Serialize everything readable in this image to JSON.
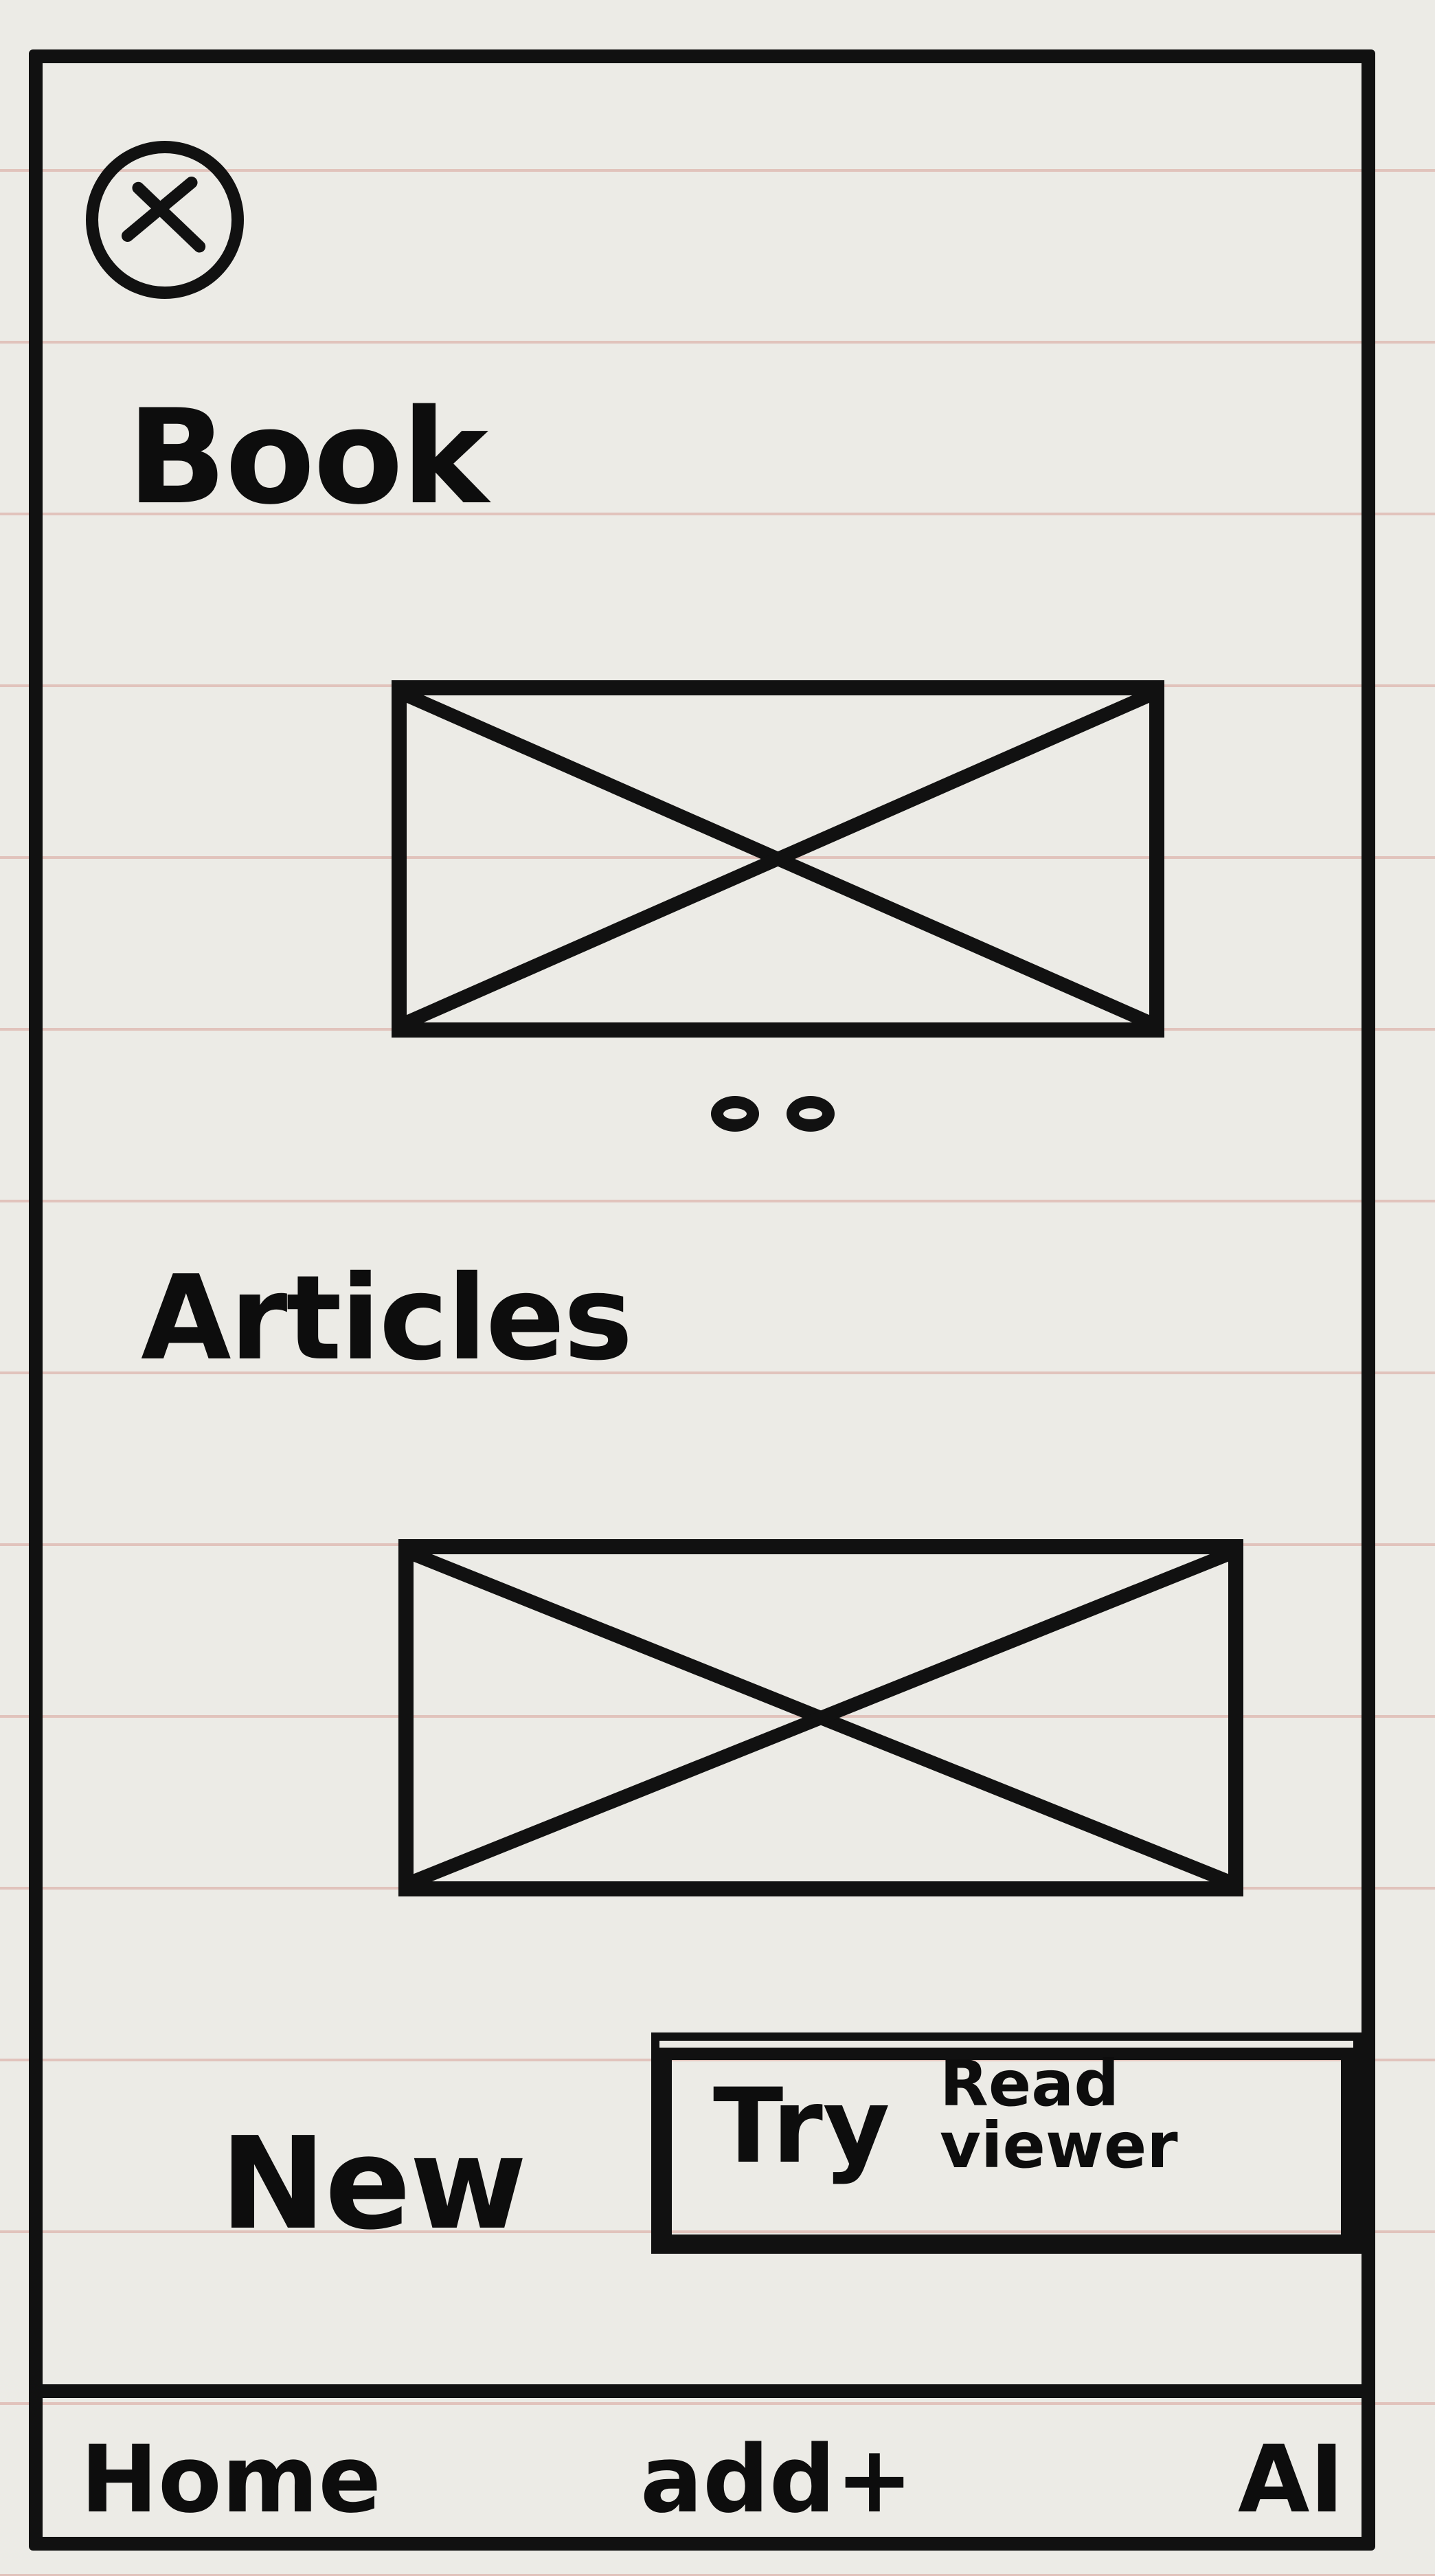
{
  "header": {
    "close_icon": "close-x-circle-icon"
  },
  "sections": {
    "book": {
      "title": "Book",
      "image_placeholder": "image-placeholder-icon",
      "pager_dots": 2
    },
    "articles": {
      "title": "Articles",
      "image_placeholder": "image-placeholder-icon"
    }
  },
  "promo": {
    "label": "New",
    "button_main": "Try",
    "button_sub_line1": "Read",
    "button_sub_line2": "viewer"
  },
  "bottom_nav": {
    "items": [
      {
        "label": "Home"
      },
      {
        "label": "add+"
      },
      {
        "label": "AI"
      }
    ]
  },
  "colors": {
    "ink": "#111111",
    "paper": "#ecebe6",
    "rule_line": "#cd786e"
  }
}
